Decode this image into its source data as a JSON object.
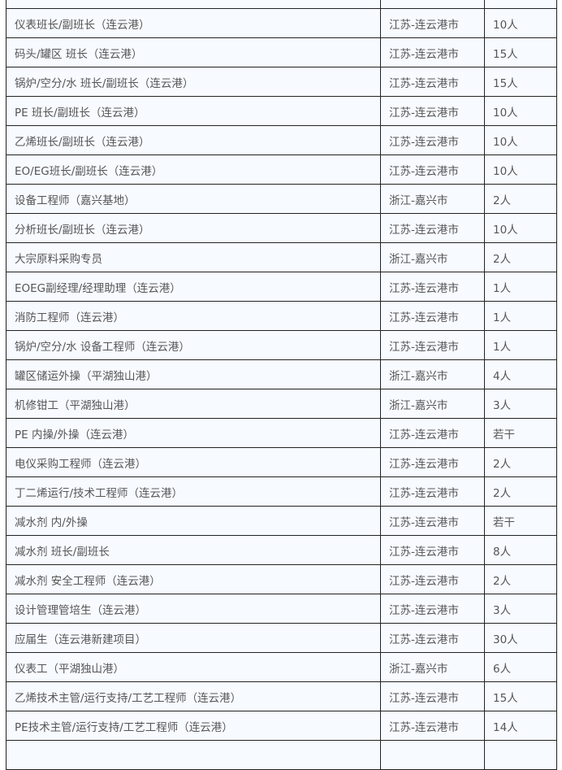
{
  "rows": [
    {
      "position": "",
      "location": "",
      "count": ""
    },
    {
      "position": "仪表班长/副班长（连云港）",
      "location": "江苏-连云港市",
      "count": "10人"
    },
    {
      "position": "码头/罐区 班长（连云港）",
      "location": "江苏-连云港市",
      "count": "15人"
    },
    {
      "position": "锅炉/空分/水 班长/副班长（连云港）",
      "location": "江苏-连云港市",
      "count": "15人"
    },
    {
      "position": "PE 班长/副班长（连云港）",
      "location": "江苏-连云港市",
      "count": "10人"
    },
    {
      "position": "乙烯班长/副班长（连云港）",
      "location": "江苏-连云港市",
      "count": "10人"
    },
    {
      "position": "EO/EG班长/副班长（连云港）",
      "location": "江苏-连云港市",
      "count": "10人"
    },
    {
      "position": "设备工程师（嘉兴基地）",
      "location": "浙江-嘉兴市",
      "count": "2人"
    },
    {
      "position": "分析班长/副班长（连云港）",
      "location": "江苏-连云港市",
      "count": "10人"
    },
    {
      "position": "大宗原料采购专员",
      "location": "浙江-嘉兴市",
      "count": "2人"
    },
    {
      "position": "EOEG副经理/经理助理（连云港）",
      "location": "江苏-连云港市",
      "count": "1人"
    },
    {
      "position": "消防工程师（连云港）",
      "location": "江苏-连云港市",
      "count": "1人"
    },
    {
      "position": "锅炉/空分/水 设备工程师（连云港）",
      "location": "江苏-连云港市",
      "count": "1人"
    },
    {
      "position": "罐区储运外操（平湖独山港）",
      "location": "浙江-嘉兴市",
      "count": "4人"
    },
    {
      "position": "机修钳工（平湖独山港）",
      "location": "浙江-嘉兴市",
      "count": "3人"
    },
    {
      "position": "PE 内操/外操（连云港）",
      "location": "江苏-连云港市",
      "count": "若干"
    },
    {
      "position": "电仪采购工程师（连云港）",
      "location": "江苏-连云港市",
      "count": "2人"
    },
    {
      "position": "丁二烯运行/技术工程师（连云港）",
      "location": "江苏-连云港市",
      "count": "2人"
    },
    {
      "position": "减水剂 内/外操",
      "location": "江苏-连云港市",
      "count": "若干"
    },
    {
      "position": "减水剂 班长/副班长",
      "location": "江苏-连云港市",
      "count": "8人"
    },
    {
      "position": "减水剂 安全工程师（连云港）",
      "location": "江苏-连云港市",
      "count": "2人"
    },
    {
      "position": "设计管理管培生（连云港）",
      "location": "江苏-连云港市",
      "count": "3人"
    },
    {
      "position": "应届生（连云港新建项目）",
      "location": "江苏-连云港市",
      "count": "30人"
    },
    {
      "position": "仪表工（平湖独山港）",
      "location": "浙江-嘉兴市",
      "count": "6人"
    },
    {
      "position": "乙烯技术主管/运行支持/工艺工程师（连云港）",
      "location": "江苏-连云港市",
      "count": "15人"
    },
    {
      "position": "PE技术主管/运行支持/工艺工程师（连云港）",
      "location": "江苏-连云港市",
      "count": "14人"
    },
    {
      "position": "",
      "location": "",
      "count": ""
    }
  ]
}
